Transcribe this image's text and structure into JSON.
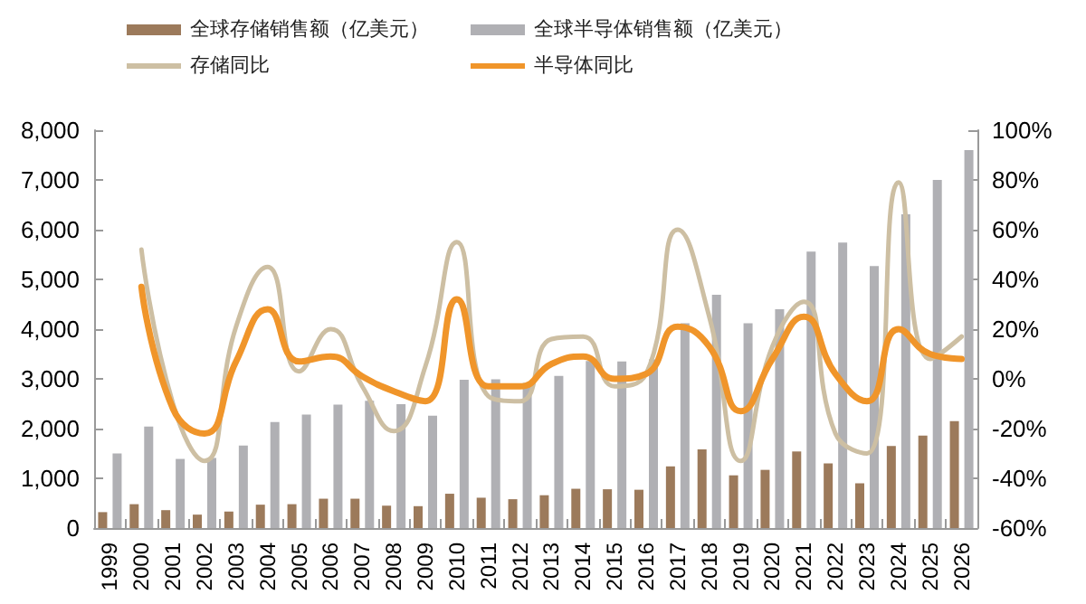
{
  "chart_data": {
    "type": "bar",
    "categories": [
      "1999",
      "2000",
      "2001",
      "2002",
      "2003",
      "2004",
      "2005",
      "2006",
      "2007",
      "2008",
      "2009",
      "2010",
      "2011",
      "2012",
      "2013",
      "2014",
      "2015",
      "2016",
      "2017",
      "2018",
      "2019",
      "2020",
      "2021",
      "2022",
      "2023",
      "2024",
      "2025",
      "2026"
    ],
    "series": [
      {
        "name": "全球存储销售额（亿美元）",
        "color": "#9c7a5b",
        "values": [
          320,
          480,
          360,
          270,
          330,
          470,
          480,
          590,
          590,
          450,
          440,
          690,
          610,
          580,
          660,
          790,
          780,
          770,
          1240,
          1580,
          1060,
          1170,
          1540,
          1300,
          900,
          1650,
          1860,
          2150
        ]
      },
      {
        "name": "全球半导体销售额（亿美元）",
        "color": "#b0b0b4",
        "values": [
          1500,
          2040,
          1390,
          1410,
          1660,
          2130,
          2280,
          2480,
          2560,
          2490,
          2260,
          2980,
          2990,
          2920,
          3060,
          3360,
          3350,
          3390,
          4120,
          4690,
          4120,
          4400,
          5560,
          5740,
          5270,
          6310,
          7000,
          7600
        ]
      },
      {
        "name": "存储同比",
        "type": "line",
        "axis": "y2",
        "color": "#cdbfa3",
        "values": [
          null,
          52,
          -10,
          -33,
          21,
          45,
          3,
          20,
          -3,
          -21,
          5,
          55,
          -7,
          -9,
          16,
          17,
          -3,
          2,
          60,
          25,
          -33,
          13,
          31,
          -22,
          -30,
          79,
          8,
          17
        ]
      },
      {
        "name": "半导体同比",
        "type": "line",
        "axis": "y2",
        "color": "#f0952a",
        "values": [
          null,
          37,
          -12,
          -22,
          7,
          28,
          7,
          9,
          1,
          -5,
          -9,
          32,
          -3,
          -3,
          6,
          9,
          0,
          2,
          21,
          13,
          -13,
          8,
          25,
          2,
          -9,
          20,
          10,
          8
        ]
      }
    ],
    "ylim": [
      0,
      8000
    ],
    "yticks": [
      0,
      {
        "value": 1000,
        "label": "1,000"
      },
      {
        "value": 2000,
        "label": "2,000"
      },
      {
        "value": 3000,
        "label": "3,000"
      },
      {
        "value": 4000,
        "label": "4,000"
      },
      {
        "value": 5000,
        "label": "5,000"
      },
      {
        "value": 6000,
        "label": "6,000"
      },
      {
        "value": 7000,
        "label": "7,000"
      },
      {
        "value": 8000,
        "label": "8,000"
      }
    ],
    "y2lim": [
      -60,
      100
    ],
    "y2ticks": [
      {
        "value": -60,
        "label": "-60%"
      },
      {
        "value": -40,
        "label": "-40%"
      },
      {
        "value": -20,
        "label": "-20%"
      },
      {
        "value": 0,
        "label": "0%"
      },
      {
        "value": 20,
        "label": "20%"
      },
      {
        "value": 40,
        "label": "40%"
      },
      {
        "value": 60,
        "label": "60%"
      },
      {
        "value": 80,
        "label": "80%"
      },
      {
        "value": 100,
        "label": "100%"
      }
    ],
    "legend": "top",
    "grid": false,
    "marker": "none"
  }
}
